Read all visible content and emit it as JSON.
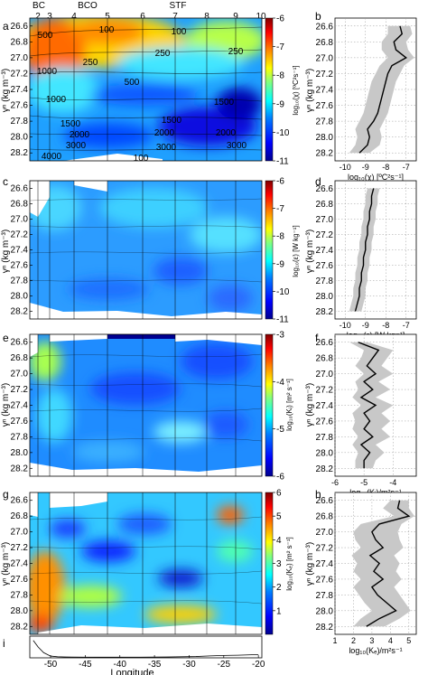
{
  "top_axis": {
    "station_numbers": [
      "2",
      "3",
      "4",
      "5",
      "6",
      "7",
      "8",
      "9",
      "10"
    ],
    "fronts": [
      "BC",
      "BCO",
      "STF"
    ]
  },
  "panel_letters": [
    "a",
    "b",
    "c",
    "d",
    "e",
    "f",
    "g",
    "h",
    "i"
  ],
  "y_axis": {
    "label": "γⁿ (kg m⁻³)",
    "ticks": [
      "26.6",
      "26.8",
      "27.0",
      "27.2",
      "27.4",
      "27.6",
      "27.8",
      "28.0",
      "28.2"
    ]
  },
  "x_axis": {
    "label": "Longitude",
    "ticks": [
      "-50",
      "-45",
      "-40",
      "-35",
      "-30",
      "-25",
      "-20"
    ]
  },
  "colors": {
    "colormap": [
      "#00008f",
      "#0000ff",
      "#0080ff",
      "#00ffff",
      "#80ff80",
      "#ffff00",
      "#ff8000",
      "#ff0000",
      "#800000"
    ],
    "profile_line": "#000000",
    "envelope": "#c8c8c8"
  },
  "chart_data": [
    {
      "panel": "a",
      "type": "heatmap",
      "ylabel": "γⁿ (kg m⁻³)",
      "colorbar": {
        "label": "log₁₀(χ) [ºC²s⁻¹]",
        "ticks": [
          "-6",
          "-7",
          "-8",
          "-9",
          "-10",
          "-11"
        ],
        "range": [
          -11,
          -6
        ]
      },
      "contour_labels": [
        "100",
        "250",
        "500",
        "1000",
        "1500",
        "2000",
        "3000",
        "4000",
        "100",
        "250",
        "500",
        "1000",
        "1500",
        "2000",
        "3000",
        "100",
        "250",
        "500",
        "1000",
        "1500",
        "2000",
        "3000",
        "100",
        "250",
        "500",
        "1000",
        "1500",
        "2000",
        "3000"
      ]
    },
    {
      "panel": "b",
      "type": "line",
      "xlabel": "log₁₀(χ) [ºC²s⁻¹]",
      "xticks": [
        "-10",
        "-9",
        "-8",
        "-7"
      ],
      "xlim": [
        -10.5,
        -6.5
      ],
      "yticks": [
        "26.6",
        "26.8",
        "27.0",
        "27.2",
        "27.4",
        "27.6",
        "27.8",
        "28.0",
        "28.2"
      ],
      "ylim": [
        28.3,
        26.5
      ],
      "y": [
        26.6,
        26.7,
        26.8,
        26.9,
        27.0,
        27.1,
        27.2,
        27.3,
        27.4,
        27.5,
        27.6,
        27.7,
        27.8,
        27.9,
        28.0,
        28.1,
        28.2
      ],
      "x": [
        -7.3,
        -7.2,
        -7.6,
        -7.5,
        -7.0,
        -7.7,
        -7.9,
        -8.0,
        -8.1,
        -8.2,
        -8.3,
        -8.4,
        -8.6,
        -8.9,
        -8.8,
        -8.9,
        -9.3
      ],
      "x_low": [
        -7.9,
        -7.9,
        -8.2,
        -8.2,
        -7.9,
        -8.3,
        -8.5,
        -8.7,
        -8.8,
        -8.9,
        -9.0,
        -9.1,
        -9.3,
        -9.5,
        -9.4,
        -9.5,
        -9.8
      ],
      "x_high": [
        -6.8,
        -6.7,
        -7.0,
        -6.9,
        -6.6,
        -7.1,
        -7.3,
        -7.5,
        -7.6,
        -7.7,
        -7.8,
        -7.9,
        -8.1,
        -8.3,
        -8.2,
        -8.3,
        -8.8
      ]
    },
    {
      "panel": "c",
      "type": "heatmap",
      "ylabel": "γⁿ (kg m⁻³)",
      "colorbar": {
        "label": "log₁₀(ε) [W kg⁻¹]",
        "ticks": [
          "-6",
          "-7",
          "-8",
          "-9",
          "-10",
          "-11"
        ],
        "range": [
          -11,
          -6
        ]
      }
    },
    {
      "panel": "d",
      "type": "line",
      "xlabel": "log₁₀(ε) [W kg⁻¹]",
      "xticks": [
        "-10",
        "-9",
        "-8",
        "-7"
      ],
      "xlim": [
        -10.5,
        -6.5
      ],
      "yticks": [
        "26.6",
        "26.8",
        "27.0",
        "27.2",
        "27.4",
        "27.6",
        "27.8",
        "28.0",
        "28.2"
      ],
      "ylim": [
        28.3,
        26.5
      ],
      "y": [
        26.6,
        26.7,
        26.8,
        26.9,
        27.0,
        27.1,
        27.2,
        27.3,
        27.4,
        27.5,
        27.6,
        27.7,
        27.8,
        27.9,
        28.0,
        28.1,
        28.2
      ],
      "x": [
        -8.6,
        -8.7,
        -8.7,
        -8.8,
        -8.8,
        -8.9,
        -8.9,
        -9.0,
        -9.0,
        -9.1,
        -9.1,
        -9.2,
        -9.2,
        -9.3,
        -9.3,
        -9.4,
        -9.5
      ],
      "x_low": [
        -8.9,
        -9.0,
        -9.0,
        -9.1,
        -9.1,
        -9.2,
        -9.2,
        -9.3,
        -9.3,
        -9.4,
        -9.4,
        -9.5,
        -9.5,
        -9.6,
        -9.6,
        -9.7,
        -9.8
      ],
      "x_high": [
        -8.3,
        -8.4,
        -8.4,
        -8.5,
        -8.5,
        -8.6,
        -8.6,
        -8.7,
        -8.7,
        -8.8,
        -8.8,
        -8.9,
        -8.9,
        -9.0,
        -9.0,
        -9.1,
        -9.2
      ]
    },
    {
      "panel": "e",
      "type": "heatmap",
      "ylabel": "γⁿ (kg m⁻³)",
      "colorbar": {
        "label": "log₁₀(Kᵢ) [m² s⁻¹]",
        "ticks": [
          "-3",
          "-4",
          "-5",
          "-6"
        ],
        "range": [
          -6,
          -3
        ]
      }
    },
    {
      "panel": "f",
      "type": "line",
      "xlabel": "log₁₀(Kᵢ)/m²s⁻¹",
      "xticks": [
        "-6",
        "-5",
        "-4"
      ],
      "xlim": [
        -6,
        -3.2
      ],
      "yticks": [
        "26.6",
        "26.8",
        "27.0",
        "27.2",
        "27.4",
        "27.6",
        "27.8",
        "28.0",
        "28.2"
      ],
      "ylim": [
        28.3,
        26.5
      ],
      "y": [
        26.6,
        26.7,
        26.8,
        26.9,
        27.0,
        27.1,
        27.2,
        27.3,
        27.4,
        27.5,
        27.6,
        27.7,
        27.8,
        27.9,
        28.0,
        28.1,
        28.2
      ],
      "x": [
        -5.2,
        -4.5,
        -4.7,
        -4.9,
        -4.6,
        -5.0,
        -4.7,
        -5.1,
        -4.6,
        -5.0,
        -4.8,
        -5.0,
        -4.7,
        -5.1,
        -4.8,
        -5.0,
        -5.0
      ],
      "x_low": [
        -5.5,
        -5.0,
        -5.1,
        -5.3,
        -5.0,
        -5.3,
        -5.2,
        -5.4,
        -5.1,
        -5.4,
        -5.3,
        -5.4,
        -5.2,
        -5.4,
        -5.2,
        -5.3,
        -5.3
      ],
      "x_high": [
        -4.9,
        -4.0,
        -4.2,
        -4.4,
        -4.0,
        -4.5,
        -4.1,
        -4.6,
        -4.0,
        -4.4,
        -4.1,
        -4.4,
        -4.1,
        -4.6,
        -4.3,
        -4.6,
        -4.7
      ]
    },
    {
      "panel": "g",
      "type": "heatmap",
      "ylabel": "γⁿ (kg m⁻³)",
      "colorbar": {
        "label": "log₁₀(Kₑ) [m² s⁻¹]",
        "ticks": [
          "6",
          "5",
          "4",
          "3",
          "2",
          "1"
        ],
        "range": [
          0,
          6
        ]
      }
    },
    {
      "panel": "h",
      "type": "line",
      "xlabel": "log₁₀(Kₑ)/m²s⁻¹",
      "xticks": [
        "1",
        "2",
        "3",
        "4",
        "5"
      ],
      "xlim": [
        1,
        5.4
      ],
      "yticks": [
        "26.6",
        "26.8",
        "27.0",
        "27.2",
        "27.4",
        "27.6",
        "27.8",
        "28.0",
        "28.2"
      ],
      "ylim": [
        28.3,
        26.5
      ],
      "y": [
        26.6,
        26.7,
        26.8,
        26.9,
        27.0,
        27.1,
        27.2,
        27.3,
        27.4,
        27.5,
        27.6,
        27.7,
        27.8,
        27.9,
        28.0,
        28.1,
        28.2
      ],
      "x": [
        4.5,
        4.4,
        5.0,
        3.4,
        3.0,
        3.2,
        3.6,
        2.9,
        3.4,
        3.1,
        3.6,
        3.0,
        3.3,
        3.8,
        4.3,
        3.4,
        2.7
      ],
      "x_low": [
        4.0,
        3.6,
        4.2,
        2.4,
        2.0,
        2.1,
        2.4,
        1.9,
        2.2,
        2.0,
        2.4,
        2.0,
        2.3,
        2.6,
        3.0,
        2.4,
        2.0
      ],
      "x_high": [
        5.0,
        5.0,
        5.3,
        4.6,
        4.4,
        4.5,
        4.7,
        4.2,
        4.5,
        4.3,
        4.6,
        4.2,
        4.5,
        4.8,
        5.1,
        4.5,
        3.7
      ]
    },
    {
      "panel": "i",
      "type": "line",
      "xlabel": "Longitude",
      "xticks": [
        "-50",
        "-45",
        "-40",
        "-35",
        "-30",
        "-25",
        "-20"
      ],
      "xlim": [
        -53,
        -19.5
      ],
      "x": [
        -52.5,
        -51.8,
        -51,
        -50,
        -49,
        -48,
        -47,
        -45,
        -43,
        -41,
        -39,
        -37,
        -35,
        -33,
        -31,
        -29,
        -27,
        -25,
        -23,
        -21,
        -20
      ],
      "y": [
        4.0,
        2.5,
        1.2,
        0.4,
        0.25,
        0.2,
        0.18,
        0.15,
        0.14,
        0.14,
        0.15,
        0.16,
        0.18,
        0.2,
        0.25,
        0.3,
        0.45,
        0.55,
        0.6,
        0.7,
        0.75
      ]
    }
  ]
}
